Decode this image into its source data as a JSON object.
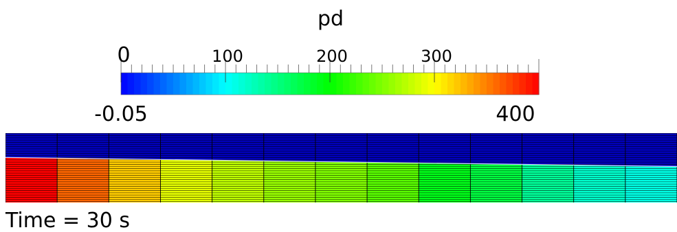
{
  "colorbar": {
    "title": "pd",
    "range_min_label": "-0.05",
    "range_max_label": "400",
    "range": [
      -0.05,
      400
    ],
    "tick_labels": [
      "0",
      "100",
      "200",
      "300"
    ],
    "tick_values": [
      0,
      100,
      200,
      300
    ],
    "colormap": "blue-cyan-green-yellow-red rainbow"
  },
  "field": {
    "column_values": [
      400,
      360,
      320,
      290,
      275,
      260,
      250,
      235,
      190,
      175,
      140,
      120,
      110
    ],
    "air_value": 0,
    "air_color": "#0000b8",
    "mesh_line_color": "#000000",
    "free_surface": {
      "start_height_fraction": 0.65,
      "end_height_fraction": 0.52
    }
  },
  "annotation": {
    "time_text": "Time = 30 s"
  }
}
